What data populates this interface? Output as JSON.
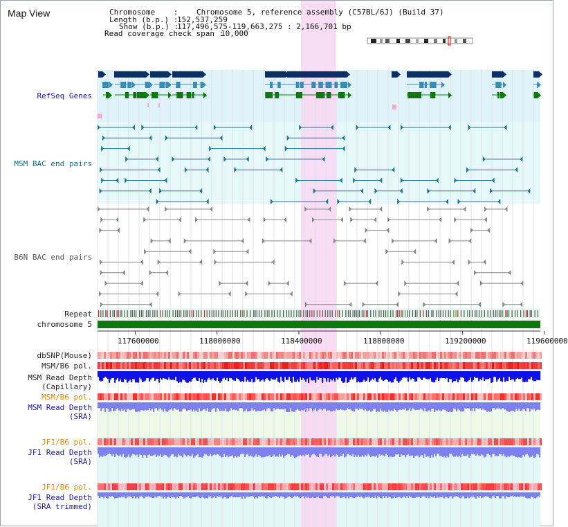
{
  "title": "Map View",
  "header": {
    "chromosome_label": "Chromosome    :",
    "chromosome_value": "Chromosome 5, reference assembly (C57BL/6J) (Build 37)",
    "length_label": "Length (b.p.) :",
    "length_value": "152,537,259",
    "show_label": "Show (b.p.) :",
    "show_value": "117,496,575-119,663,275 : 2,166,701 bp",
    "coverage_label": "Read coverage check span :",
    "coverage_value": "10,000"
  },
  "tracks": {
    "refseq": {
      "label": "RefSeq Genes"
    },
    "msm_bac": {
      "label": "MSM BAC end pairs"
    },
    "b6n_bac": {
      "label": "B6N BAC end pairs"
    },
    "repeat": {
      "label": "Repeat"
    },
    "chromosome": {
      "label": "chromosome 5"
    },
    "dbsnp": {
      "label": "dbSNP(Mouse)"
    },
    "msm_pol1": {
      "label": "MSM/B6 pol."
    },
    "msm_depth_cap": {
      "label": "MSM Read Depth",
      "sub": "(Capillary)"
    },
    "msm_pol2": {
      "label": "MSM/B6 pol."
    },
    "msm_depth_sra": {
      "label": "MSM Read Depth",
      "sub": "(SRA)"
    },
    "jf1_pol1": {
      "label": "JF1/B6 pol."
    },
    "jf1_depth_sra": {
      "label": "JF1 Read Depth",
      "sub": "(SRA)"
    },
    "jf1_pol2": {
      "label": "JF1/B6 pol."
    },
    "jf1_depth_trim": {
      "label": "JF1 Read Depth",
      "sub": "(SRA trimmed)"
    }
  },
  "ruler": {
    "ticks": [
      "117600000",
      "118000000",
      "118400000",
      "118800000",
      "119200000",
      "119600000"
    ]
  },
  "colors": {
    "label_navy": "#1a1a9c",
    "label_teal": "#106a8a",
    "label_gray": "#555555",
    "label_dark": "#222222",
    "label_orange": "#e08a00",
    "gene_navy": "#0b2f66",
    "gene_teal": "#3a8cb5",
    "gene_green": "#0a7a0a",
    "msm_pair": "#1a7a90",
    "b6n_pair": "#888888",
    "chromosome": "#0b780b",
    "depth_capillary": "#1010e8",
    "depth_sra": "#7f80f0",
    "highlight": "#f8d7f2"
  }
}
